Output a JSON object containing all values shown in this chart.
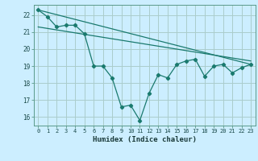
{
  "title": "",
  "xlabel": "Humidex (Indice chaleur)",
  "bg_color": "#cceeff",
  "grid_color": "#aacccc",
  "line_color": "#1a7a6e",
  "xlim": [
    -0.5,
    23.5
  ],
  "ylim": [
    15.5,
    22.6
  ],
  "yticks": [
    16,
    17,
    18,
    19,
    20,
    21,
    22
  ],
  "xticks": [
    0,
    1,
    2,
    3,
    4,
    5,
    6,
    7,
    8,
    9,
    10,
    11,
    12,
    13,
    14,
    15,
    16,
    17,
    18,
    19,
    20,
    21,
    22,
    23
  ],
  "series1_x": [
    0,
    1,
    2,
    3,
    4,
    5,
    6,
    7,
    8,
    9,
    10,
    11,
    12,
    13,
    14,
    15,
    16,
    17,
    18,
    19,
    20,
    21,
    22,
    23
  ],
  "series1_y": [
    22.3,
    21.9,
    21.3,
    21.4,
    21.4,
    20.9,
    19.0,
    19.0,
    18.3,
    16.6,
    16.7,
    15.8,
    17.4,
    18.5,
    18.3,
    19.1,
    19.3,
    19.4,
    18.4,
    19.0,
    19.1,
    18.6,
    18.9,
    19.1
  ],
  "trend1_x": [
    0,
    23
  ],
  "trend1_y": [
    22.3,
    19.1
  ],
  "trend2_x": [
    0,
    23
  ],
  "trend2_y": [
    21.3,
    19.3
  ]
}
